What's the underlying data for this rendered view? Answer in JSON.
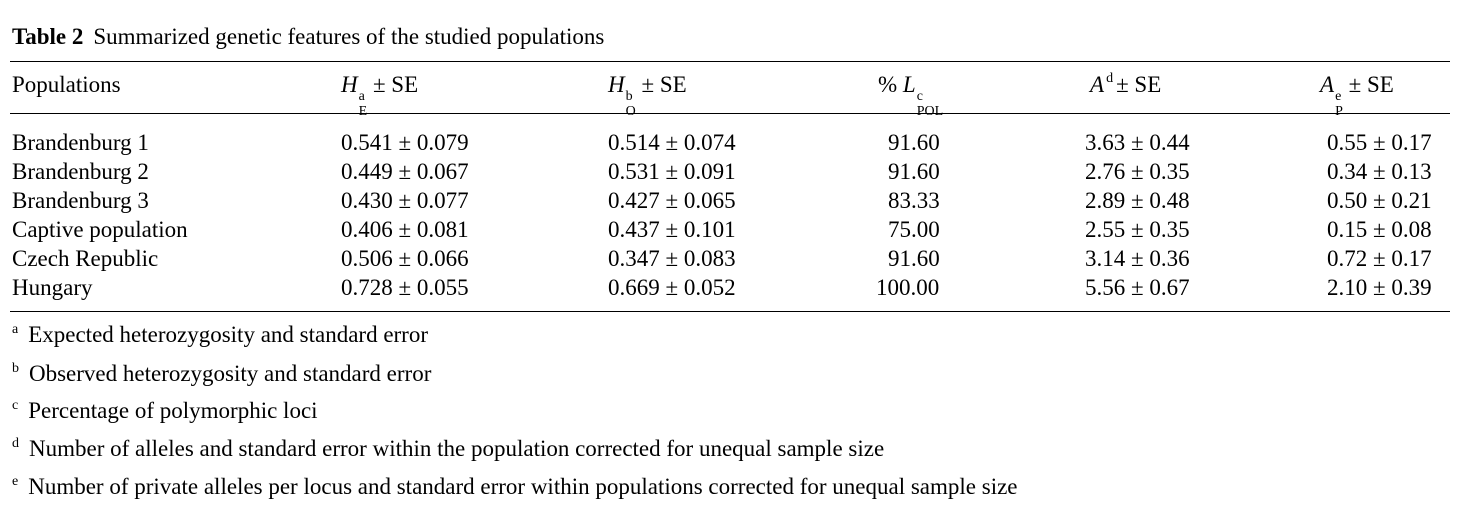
{
  "table": {
    "label": "Table 2",
    "title": "Summarized genetic features of the studied populations",
    "headers": {
      "populations": "Populations",
      "he": {
        "symbol": "H",
        "sup": "a",
        "sub": "E",
        "suffix": "±  SE"
      },
      "ho": {
        "symbol": "H",
        "sup": "b",
        "sub": "O",
        "suffix": "±  SE"
      },
      "lpol": {
        "prefix": "%",
        "symbol": "L",
        "sup": "c",
        "sub": "POL"
      },
      "a": {
        "symbol": "A",
        "sup": "d",
        "suffix": "±  SE"
      },
      "ap": {
        "symbol": "A",
        "sup": "e",
        "sub": "P",
        "suffix": "±  SE"
      }
    },
    "rows": [
      {
        "population": "Brandenburg 1",
        "he": "0.541 ± 0.079",
        "ho": "0.514 ± 0.074",
        "lpol": "91.60",
        "a": "3.63 ± 0.44",
        "ap": "0.55 ± 0.17"
      },
      {
        "population": "Brandenburg 2",
        "he": "0.449 ± 0.067",
        "ho": "0.531 ± 0.091",
        "lpol": "91.60",
        "a": "2.76 ± 0.35",
        "ap": "0.34 ± 0.13"
      },
      {
        "population": "Brandenburg 3",
        "he": "0.430 ± 0.077",
        "ho": "0.427 ± 0.065",
        "lpol": "83.33",
        "a": "2.89 ± 0.48",
        "ap": "0.50 ± 0.21"
      },
      {
        "population": "Captive population",
        "he": "0.406 ± 0.081",
        "ho": "0.437 ± 0.101",
        "lpol": "75.00",
        "a": "2.55 ± 0.35",
        "ap": "0.15 ± 0.08"
      },
      {
        "population": "Czech Republic",
        "he": "0.506 ± 0.066",
        "ho": "0.347 ± 0.083",
        "lpol": "91.60",
        "a": "3.14 ± 0.36",
        "ap": "0.72 ± 0.17"
      },
      {
        "population": "Hungary",
        "he": "0.728 ± 0.055",
        "ho": "0.669 ± 0.052",
        "lpol": "100.00",
        "a": "5.56 ± 0.67",
        "ap": "2.10 ± 0.39"
      }
    ],
    "footnotes": [
      {
        "mark": "a",
        "text": "Expected heterozygosity and standard error"
      },
      {
        "mark": "b",
        "text": "Observed heterozygosity and standard error"
      },
      {
        "mark": "c",
        "text": "Percentage of polymorphic loci"
      },
      {
        "mark": "d",
        "text": "Number of alleles and standard error within the population corrected for unequal sample size"
      },
      {
        "mark": "e",
        "text": "Number of private alleles per locus and standard error within populations corrected for unequal sample size"
      }
    ]
  }
}
